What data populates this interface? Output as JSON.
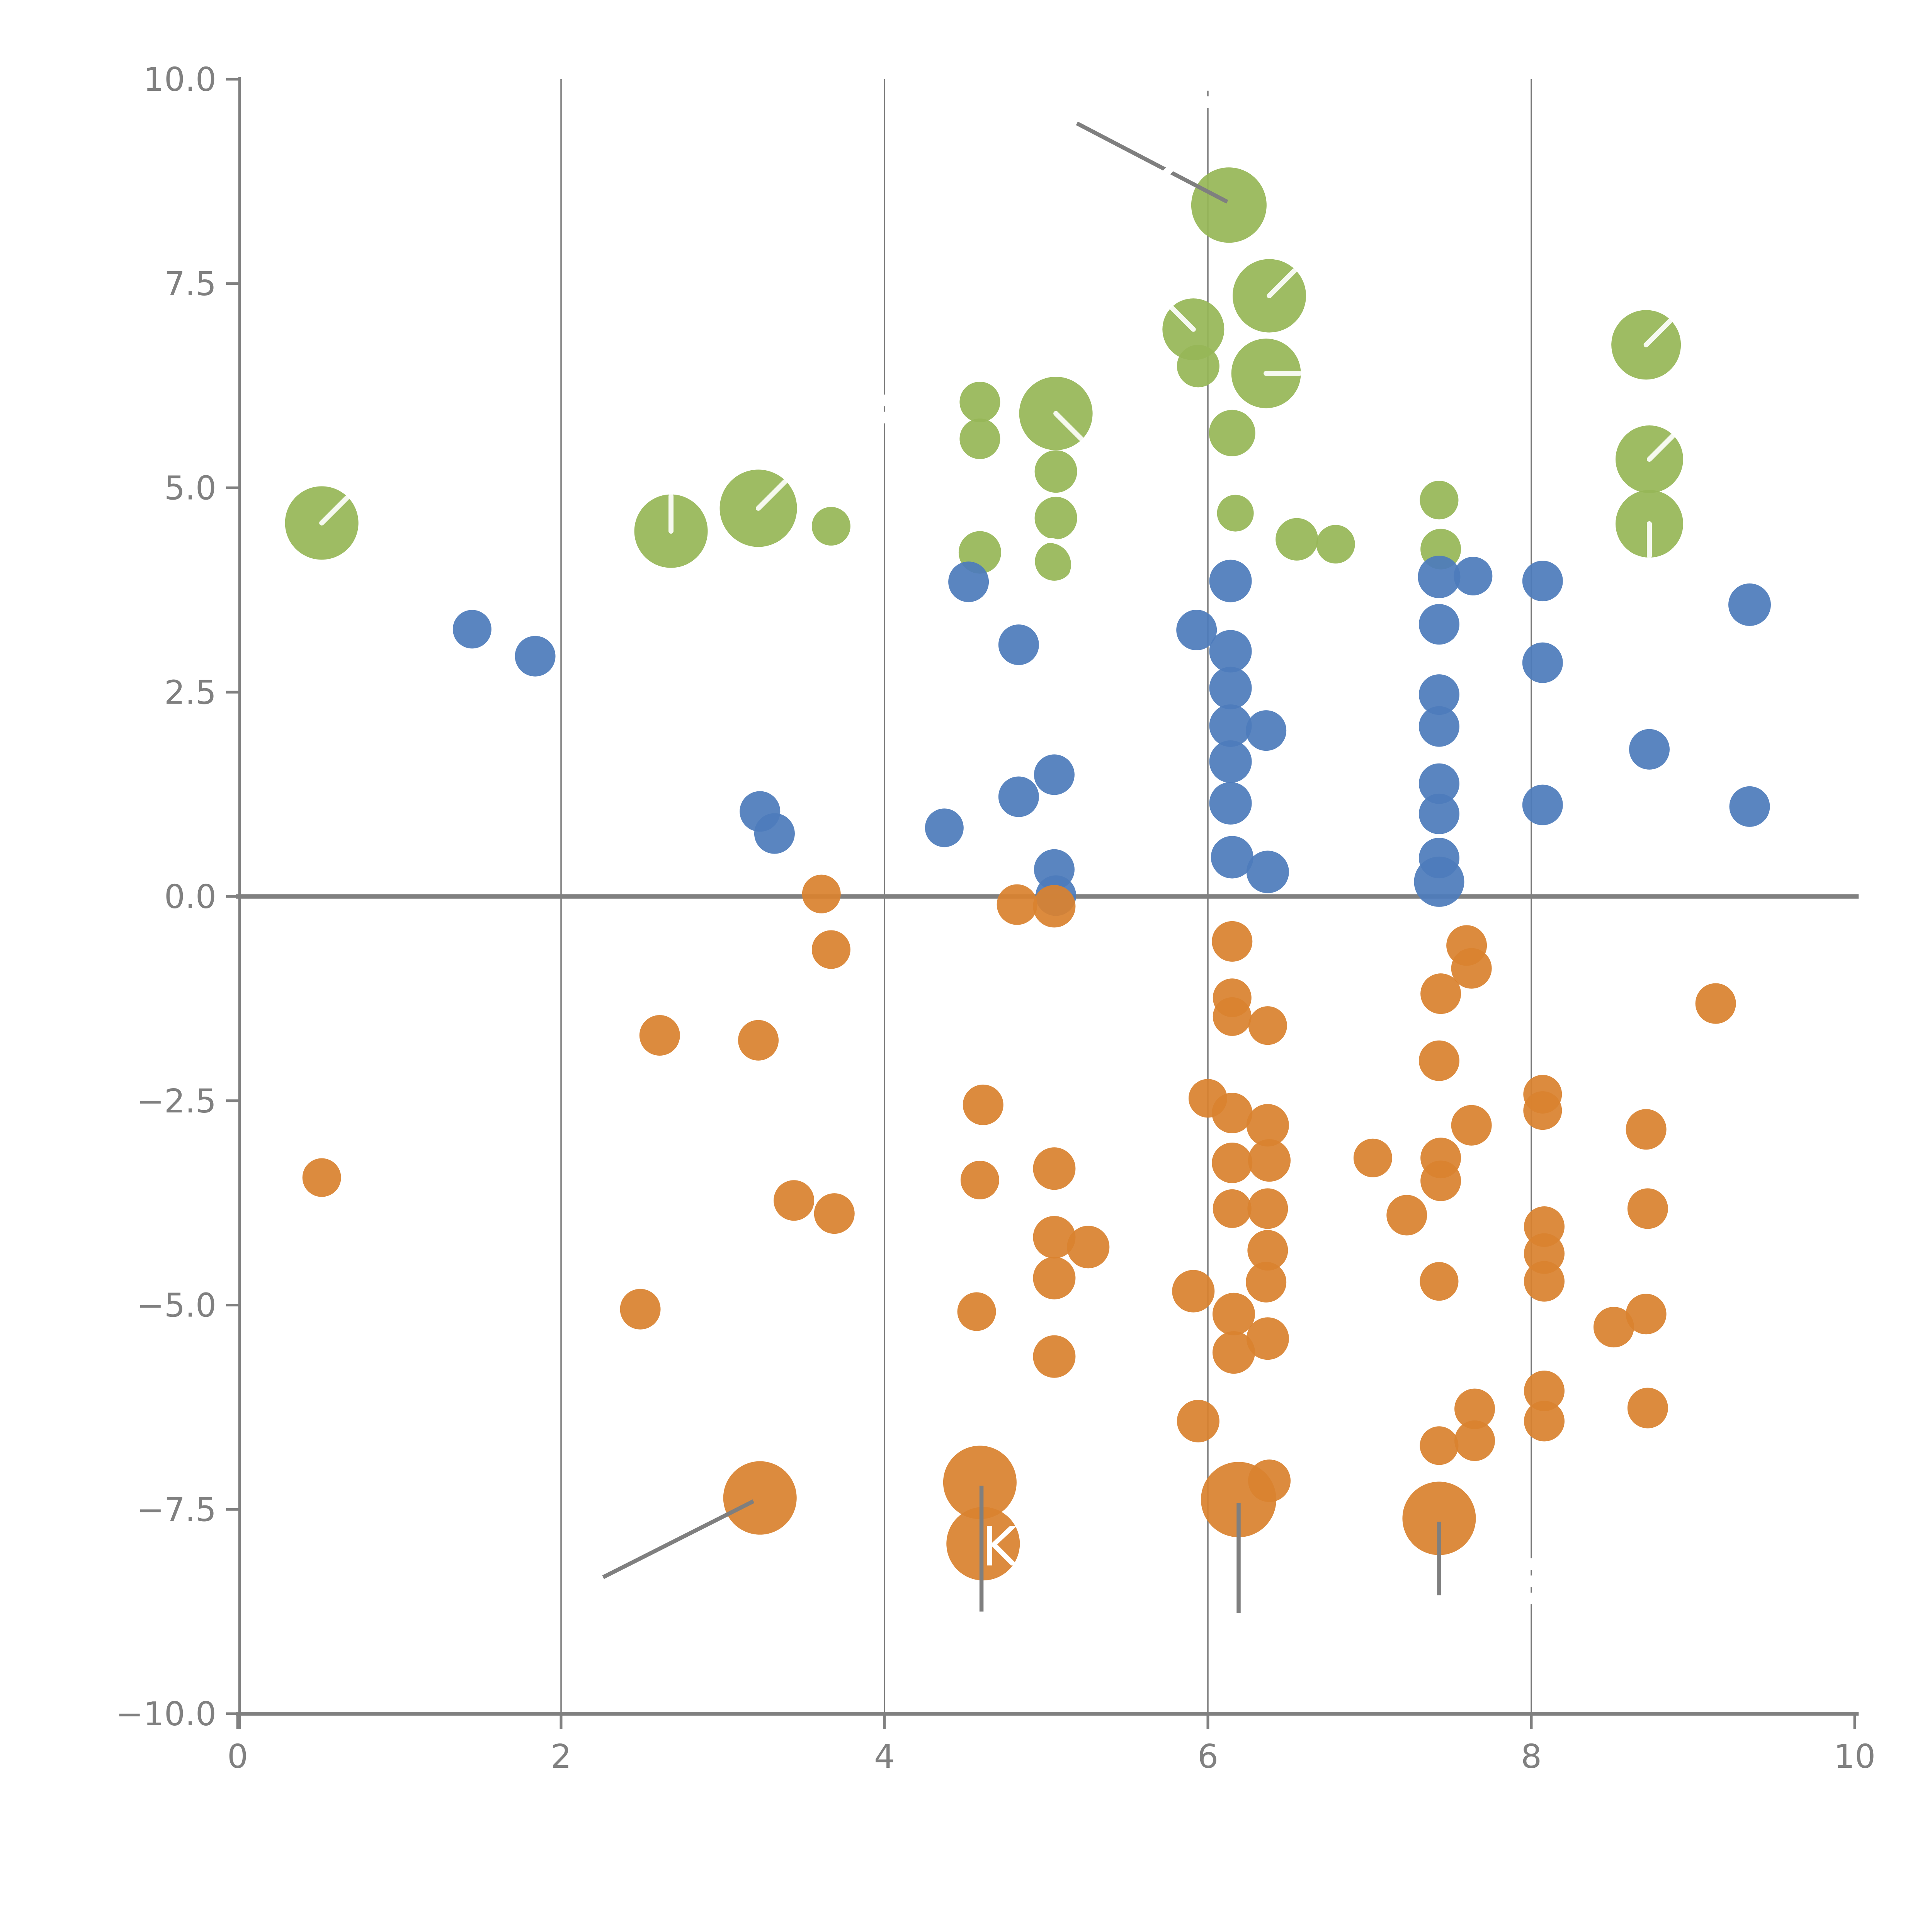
{
  "chart_data": {
    "type": "scatter",
    "title": "",
    "xlabel": "",
    "ylabel": "",
    "xlim": [
      0,
      10
    ],
    "ylim": [
      -10,
      10
    ],
    "grid": "vertical-only",
    "legend": "none",
    "x_ticks": [
      {
        "v": 0,
        "label": "0"
      },
      {
        "v": 2,
        "label": "2"
      },
      {
        "v": 4,
        "label": "4"
      },
      {
        "v": 6,
        "label": "6"
      },
      {
        "v": 8,
        "label": "8"
      },
      {
        "v": 10,
        "label": "10"
      }
    ],
    "y_ticks": [
      {
        "v": 10,
        "label": "10.0"
      },
      {
        "v": 7.5,
        "label": "7.5"
      },
      {
        "v": 5,
        "label": "5.0"
      },
      {
        "v": 2.5,
        "label": "2.5"
      },
      {
        "v": 0,
        "label": "0.0"
      },
      {
        "v": -2.5,
        "label": "−2.5"
      },
      {
        "v": -5,
        "label": "−5.0"
      },
      {
        "v": -7.5,
        "label": "−7.5"
      },
      {
        "v": -10,
        "label": "−10.0"
      }
    ],
    "gridlines_x": [
      2,
      4,
      6,
      8
    ],
    "zero_line_y": 0,
    "colors": {
      "green": "#97b757",
      "blue": "#4e7cbb",
      "orange": "#d9822f",
      "axis": "#808080",
      "gridline": "#787878",
      "annotation": "#7f7f7f",
      "mark": "#ffffff"
    },
    "series": [
      {
        "name": "green",
        "color_key": "green",
        "points": [
          [
            0.52,
            4.57,
            19,
            "ne"
          ],
          [
            2.68,
            4.47,
            19,
            "n"
          ],
          [
            3.22,
            4.75,
            20,
            "ne"
          ],
          [
            3.67,
            4.53,
            10
          ],
          [
            4.59,
            6.05,
            10.5
          ],
          [
            4.59,
            5.6,
            10.5
          ],
          [
            5.06,
            5.91,
            19,
            "se"
          ],
          [
            5.06,
            5.2,
            11
          ],
          [
            5.06,
            4.63,
            11
          ],
          [
            5.05,
            4.1,
            10
          ],
          [
            4.59,
            4.21,
            11
          ],
          [
            6.13,
            8.46,
            19.5
          ],
          [
            5.91,
            6.94,
            16,
            "nw"
          ],
          [
            5.94,
            6.49,
            11
          ],
          [
            6.38,
            7.35,
            19,
            "ne"
          ],
          [
            6.36,
            6.4,
            18,
            "e"
          ],
          [
            6.15,
            5.67,
            12
          ],
          [
            6.17,
            4.69,
            9.5
          ],
          [
            6.55,
            4.37,
            11
          ],
          [
            6.79,
            4.31,
            10
          ],
          [
            7.43,
            4.85,
            10
          ],
          [
            7.44,
            4.25,
            10.5
          ],
          [
            8.71,
            6.75,
            18,
            "ne"
          ],
          [
            8.73,
            5.35,
            17.5,
            "ne"
          ],
          [
            8.73,
            4.56,
            17.5,
            "s"
          ]
        ]
      },
      {
        "name": "blue",
        "color_key": "blue",
        "points": [
          [
            1.45,
            3.27,
            10
          ],
          [
            1.84,
            2.94,
            10.5
          ],
          [
            4.52,
            3.85,
            10.5
          ],
          [
            4.83,
            3.08,
            10.5
          ],
          [
            3.23,
            1.04,
            10.5
          ],
          [
            3.32,
            0.77,
            10.5
          ],
          [
            4.37,
            0.84,
            10
          ],
          [
            4.83,
            1.22,
            10.5
          ],
          [
            5.05,
            1.49,
            10.5
          ],
          [
            5.05,
            0.33,
            10.5
          ],
          [
            5.06,
            0.01,
            10.5
          ],
          [
            5.93,
            3.26,
            10.5
          ],
          [
            6.14,
            3.86,
            11
          ],
          [
            6.14,
            3.0,
            11
          ],
          [
            6.14,
            2.55,
            11
          ],
          [
            6.14,
            2.09,
            11
          ],
          [
            6.14,
            1.65,
            11
          ],
          [
            6.14,
            1.14,
            11
          ],
          [
            6.15,
            0.48,
            11
          ],
          [
            6.36,
            2.03,
            10.5
          ],
          [
            6.37,
            0.3,
            11
          ],
          [
            7.43,
            3.91,
            11
          ],
          [
            7.64,
            3.92,
            10
          ],
          [
            8.07,
            3.86,
            10.5
          ],
          [
            9.35,
            3.57,
            11
          ],
          [
            7.43,
            3.33,
            10.5
          ],
          [
            7.43,
            2.47,
            10.5
          ],
          [
            7.43,
            2.08,
            10.5
          ],
          [
            7.43,
            1.38,
            10.5
          ],
          [
            7.43,
            1.01,
            10.5
          ],
          [
            7.43,
            0.47,
            10.5
          ],
          [
            7.43,
            0.18,
            13
          ],
          [
            8.07,
            2.86,
            10.5
          ],
          [
            8.07,
            1.12,
            10.5
          ],
          [
            8.73,
            1.8,
            10.5
          ],
          [
            9.35,
            1.1,
            10.5
          ]
        ]
      },
      {
        "name": "orange",
        "color_key": "orange",
        "points": [
          [
            0.52,
            -3.44,
            10
          ],
          [
            2.49,
            -5.05,
            10.5
          ],
          [
            2.61,
            -1.7,
            10.5
          ],
          [
            3.22,
            -1.76,
            10.5
          ],
          [
            3.61,
            0.03,
            10
          ],
          [
            3.67,
            -0.65,
            10
          ],
          [
            3.44,
            -3.72,
            10.5
          ],
          [
            3.69,
            -3.88,
            10.5
          ],
          [
            3.23,
            -7.36,
            19
          ],
          [
            4.82,
            -0.1,
            10.5
          ],
          [
            5.05,
            -0.12,
            11
          ],
          [
            4.61,
            -2.55,
            10.5
          ],
          [
            4.59,
            -3.47,
            10
          ],
          [
            5.05,
            -3.33,
            11
          ],
          [
            5.05,
            -4.17,
            11
          ],
          [
            5.26,
            -4.29,
            11
          ],
          [
            5.05,
            -4.67,
            11
          ],
          [
            4.57,
            -5.08,
            10
          ],
          [
            5.05,
            -5.63,
            11
          ],
          [
            4.59,
            -7.17,
            19
          ],
          [
            4.61,
            -7.92,
            19
          ],
          [
            5.91,
            -4.83,
            11
          ],
          [
            5.94,
            -6.42,
            11
          ],
          [
            6.15,
            -0.55,
            10.5
          ],
          [
            6.15,
            -1.24,
            10
          ],
          [
            6.15,
            -1.47,
            10
          ],
          [
            6.37,
            -1.58,
            10
          ],
          [
            6.0,
            -2.47,
            10
          ],
          [
            6.15,
            -2.65,
            10.5
          ],
          [
            6.37,
            -2.8,
            11
          ],
          [
            6.15,
            -3.26,
            10.5
          ],
          [
            6.38,
            -3.23,
            11
          ],
          [
            6.15,
            -3.82,
            10
          ],
          [
            6.37,
            -3.82,
            10.5
          ],
          [
            6.37,
            -4.33,
            10.5
          ],
          [
            6.36,
            -4.72,
            10.5
          ],
          [
            6.16,
            -5.11,
            11
          ],
          [
            6.37,
            -5.41,
            11
          ],
          [
            6.16,
            -5.58,
            11
          ],
          [
            6.19,
            -7.38,
            19.5
          ],
          [
            6.38,
            -7.15,
            11
          ],
          [
            7.44,
            -1.19,
            10.5
          ],
          [
            7.63,
            -0.88,
            10.5
          ],
          [
            7.6,
            -0.6,
            10.5
          ],
          [
            7.43,
            -2.01,
            10.5
          ],
          [
            7.63,
            -2.8,
            10.5
          ],
          [
            7.02,
            -3.2,
            10
          ],
          [
            7.44,
            -3.2,
            10.5
          ],
          [
            7.44,
            -3.48,
            10.5
          ],
          [
            7.23,
            -3.9,
            10.5
          ],
          [
            7.43,
            -4.71,
            10
          ],
          [
            7.65,
            -6.27,
            10.5
          ],
          [
            7.65,
            -6.66,
            10.5
          ],
          [
            7.43,
            -6.72,
            10
          ],
          [
            7.43,
            -7.61,
            19
          ],
          [
            8.07,
            -2.42,
            10
          ],
          [
            8.07,
            -2.62,
            10
          ],
          [
            8.71,
            -2.85,
            10.5
          ],
          [
            8.72,
            -3.82,
            10.5
          ],
          [
            9.14,
            -1.31,
            10.5
          ],
          [
            8.08,
            -4.04,
            10.5
          ],
          [
            8.08,
            -4.37,
            10.5
          ],
          [
            8.08,
            -4.71,
            10.5
          ],
          [
            8.51,
            -5.27,
            10.5
          ],
          [
            8.71,
            -5.11,
            10.5
          ],
          [
            8.08,
            -6.05,
            10.5
          ],
          [
            8.08,
            -6.42,
            10.5
          ],
          [
            8.72,
            -6.26,
            10.5
          ]
        ]
      }
    ],
    "annotation_lines": [
      {
        "x1": 5.19,
        "y1": 9.46,
        "x2": 6.12,
        "y2": 8.5
      },
      {
        "x1": 3.19,
        "y1": -7.4,
        "x2": 2.26,
        "y2": -8.33
      },
      {
        "x1": 4.6,
        "y1": -7.21,
        "x2": 4.6,
        "y2": -8.75
      },
      {
        "x1": 6.19,
        "y1": -7.42,
        "x2": 6.19,
        "y2": -8.77
      },
      {
        "x1": 7.43,
        "y1": -7.65,
        "x2": 7.43,
        "y2": -8.55
      }
    ],
    "white_ring": {
      "x": 5.02,
      "y": 4.06,
      "r": 12.5
    },
    "white_gaps": [
      {
        "x": 4,
        "y": 6.07,
        "a": 90
      },
      {
        "x": 4,
        "y": 5.86,
        "a": 90
      },
      {
        "x": 6,
        "y": 9.93,
        "a": 90
      },
      {
        "x": 6,
        "y": 9.72,
        "a": 90
      },
      {
        "x": 8,
        "y": -8.17,
        "a": 90
      },
      {
        "x": 8,
        "y": -8.38,
        "a": 90
      },
      {
        "x": 8,
        "y": -8.59,
        "a": 90
      },
      {
        "x": 5.75,
        "y": 8.87,
        "a": -46
      }
    ],
    "point_label": {
      "text": "K",
      "x": 4.71,
      "y": -7.95
    }
  }
}
